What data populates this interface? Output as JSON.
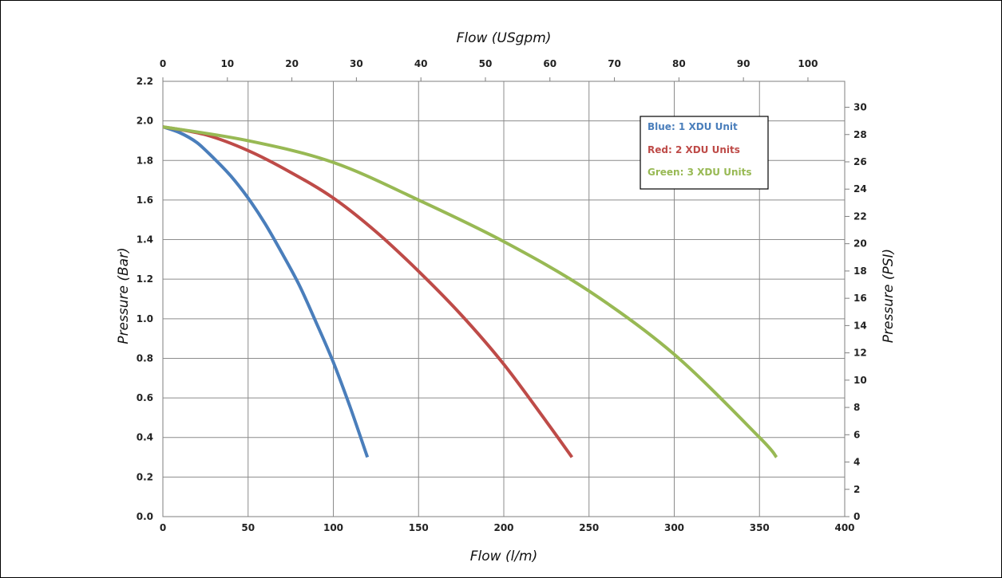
{
  "chart_data": {
    "type": "line",
    "xlabel": "Flow (l/m)",
    "x2label": "Flow (USgpm)",
    "ylabel": "Pressure (Bar)",
    "y2label": "Pressure (PSI)",
    "xlim": [
      0,
      400
    ],
    "x2lim": [
      0,
      105.7
    ],
    "ylim": [
      0,
      2.2
    ],
    "y2lim": [
      0,
      31.9
    ],
    "xticks": [
      0,
      50,
      100,
      150,
      200,
      250,
      300,
      350,
      400
    ],
    "x2ticks": [
      0,
      10,
      20,
      30,
      40,
      50,
      60,
      70,
      80,
      90,
      100
    ],
    "yticks": [
      "0.0",
      "0.2",
      "0.4",
      "0.6",
      "0.8",
      "1.0",
      "1.2",
      "1.4",
      "1.6",
      "1.8",
      "2.0",
      "2.2"
    ],
    "y2ticks": [
      0,
      2,
      4,
      6,
      8,
      10,
      12,
      14,
      16,
      18,
      20,
      22,
      24,
      26,
      28,
      30
    ],
    "grid": true,
    "legend_position": "top-right",
    "series": [
      {
        "name": "Blue: 1 XDU Unit",
        "color": "#4a7ebb",
        "x": [
          0,
          10,
          20,
          30,
          40,
          50,
          60,
          70,
          80,
          90,
          100,
          110,
          120
        ],
        "y": [
          1.97,
          1.94,
          1.89,
          1.81,
          1.72,
          1.61,
          1.48,
          1.33,
          1.17,
          0.98,
          0.78,
          0.55,
          0.3
        ]
      },
      {
        "name": "Red: 2 XDU Units",
        "color": "#be4b48",
        "x": [
          0,
          25,
          50,
          75,
          100,
          125,
          150,
          175,
          200,
          225,
          240
        ],
        "y": [
          1.97,
          1.93,
          1.85,
          1.74,
          1.61,
          1.44,
          1.24,
          1.02,
          0.77,
          0.48,
          0.3
        ]
      },
      {
        "name": "Green: 3 XDU  Units",
        "color": "#98b954",
        "x": [
          0,
          50,
          100,
          150,
          200,
          250,
          300,
          350,
          360
        ],
        "y": [
          1.97,
          1.9,
          1.79,
          1.6,
          1.39,
          1.14,
          0.82,
          0.4,
          0.3
        ]
      }
    ]
  }
}
